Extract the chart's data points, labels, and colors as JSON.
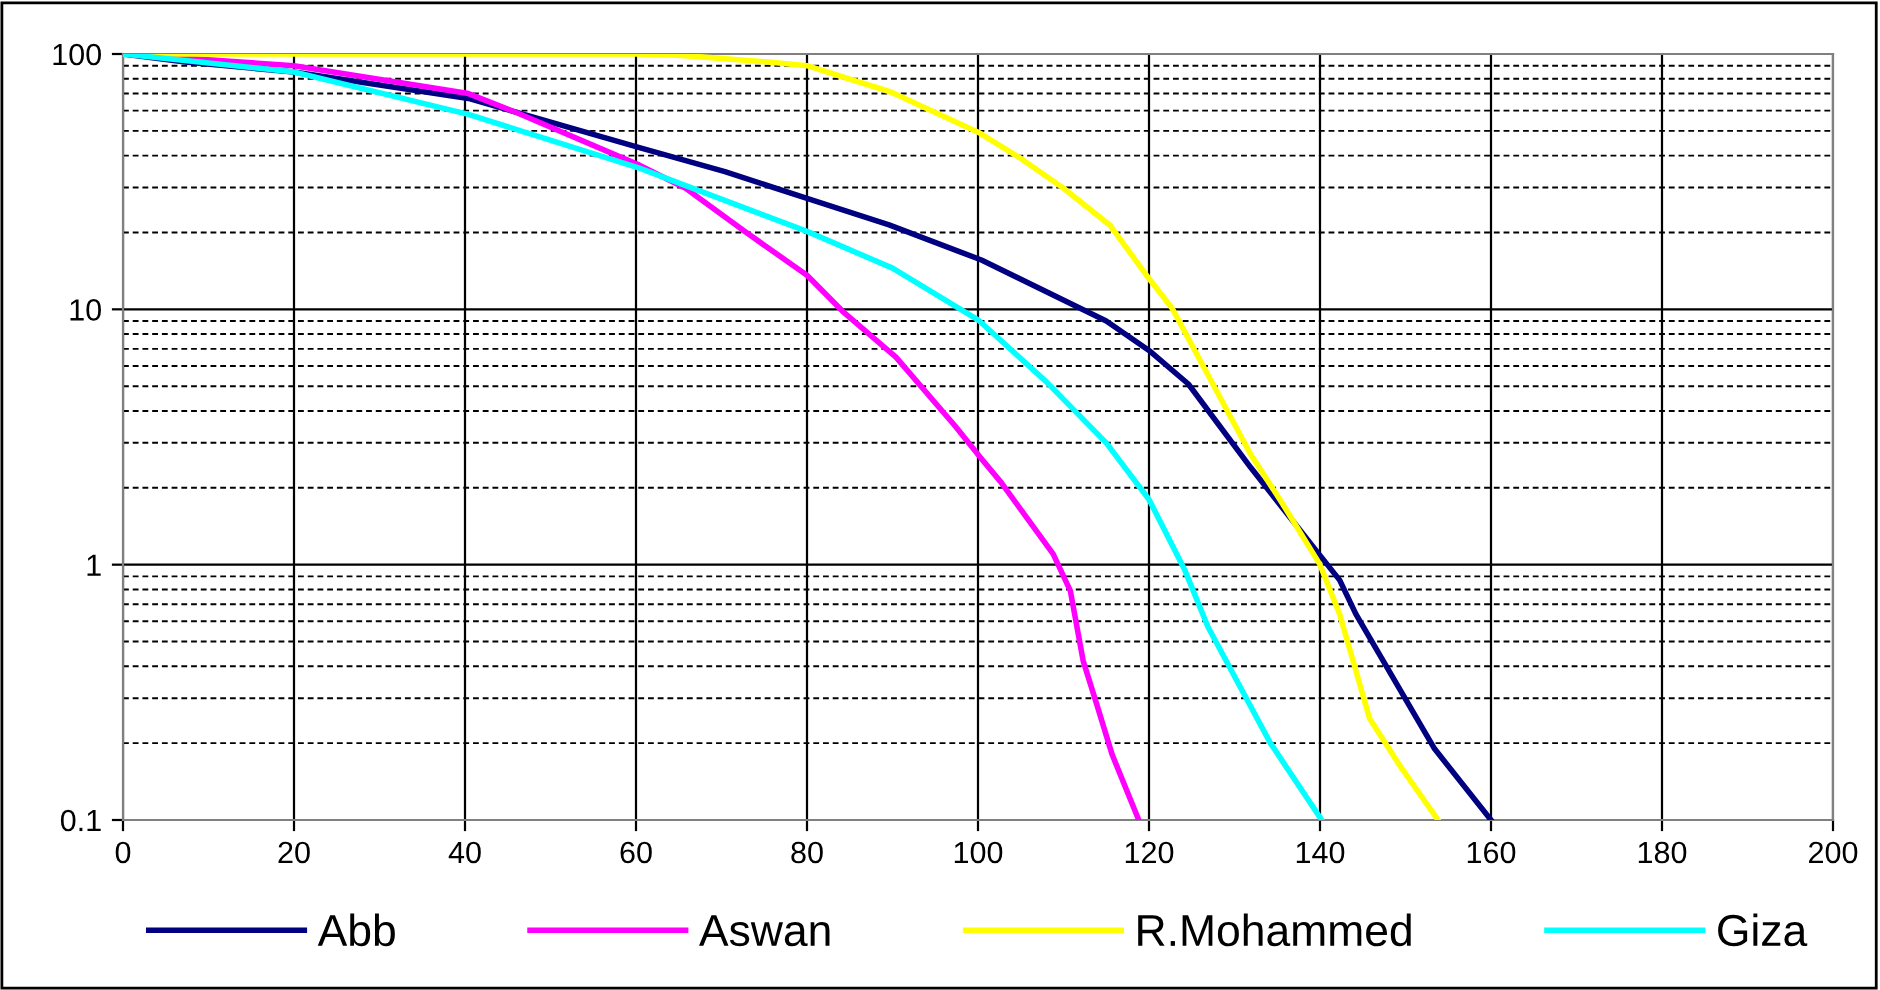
{
  "chart_data": {
    "type": "line",
    "log": "y",
    "xlim": [
      0,
      200
    ],
    "xticks": [
      0,
      20,
      40,
      60,
      80,
      100,
      120,
      140,
      160,
      180,
      200
    ],
    "ylim": [
      0.1,
      100
    ],
    "yticks": [
      0.1,
      1,
      10,
      100
    ],
    "grid": true,
    "legend": "bottom",
    "line_style": "solid",
    "marker": "none",
    "series": [
      {
        "name": "Abb",
        "color": "#000080",
        "x": [
          0,
          7.3,
          20,
          40.4,
          60.4,
          70.4,
          80,
          89.6,
          100.4,
          115,
          120,
          124.6,
          131.9,
          139.6,
          142.3,
          144.2,
          153.4,
          160
        ],
        "values": [
          100,
          93,
          85,
          67,
          43,
          34.6,
          27.2,
          21.4,
          15.6,
          9.0,
          6.9,
          5.1,
          2.4,
          1.13,
          0.87,
          0.64,
          0.19,
          0.1
        ]
      },
      {
        "name": "Aswan",
        "color": "#ff00ff",
        "x": [
          0,
          20,
          40.4,
          46,
          60.4,
          65.8,
          72.7,
          80,
          84.2,
          90.4,
          97.3,
          100.4,
          102.7,
          108.8,
          110.8,
          112.3,
          113.8,
          115.7,
          118.8
        ],
        "values": [
          100,
          90,
          70,
          59,
          36.7,
          29.8,
          20.2,
          13.6,
          9.8,
          6.5,
          3.5,
          2.6,
          2.1,
          1.1,
          0.79,
          0.42,
          0.29,
          0.18,
          0.1
        ]
      },
      {
        "name": "R.Mohammed",
        "color": "#ffff00",
        "x": [
          0,
          20,
          40,
          60,
          65,
          75.5,
          80,
          89.8,
          100.2,
          105,
          110,
          115.4,
          120,
          122.7,
          131.9,
          135.4,
          140,
          142.3,
          145.8,
          149.2,
          153.8
        ],
        "values": [
          100,
          100,
          100,
          100,
          99,
          93,
          90,
          71,
          49,
          39,
          29.8,
          21.4,
          13.2,
          10.1,
          2.7,
          1.78,
          1.0,
          0.64,
          0.25,
          0.166,
          0.1
        ]
      },
      {
        "name": "Giza",
        "color": "#00ffff",
        "x": [
          0,
          20,
          40.4,
          60.4,
          80,
          90,
          100,
          108,
          115,
          120,
          124.2,
          126.9,
          134.2,
          140.2
        ],
        "values": [
          100,
          85,
          58,
          35.7,
          20.2,
          14.5,
          9.1,
          5.2,
          3.0,
          1.8,
          0.95,
          0.57,
          0.2,
          0.1
        ]
      }
    ]
  }
}
